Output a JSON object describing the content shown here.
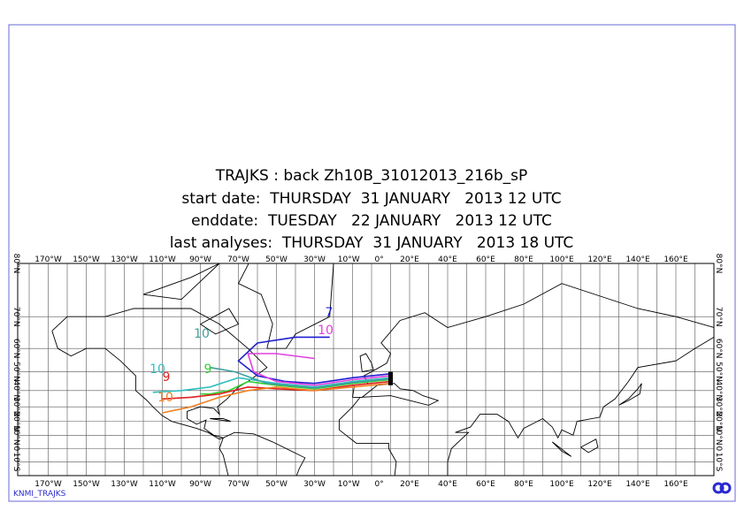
{
  "header": {
    "lines": [
      "TRAJKS : back Zh10B_31012013_216b_sP",
      "start date:  THURSDAY  31 JANUARY   2013 12 UTC",
      "enddate:  TUESDAY   22 JANUARY   2013 12 UTC",
      "last analyses:  THURSDAY  31 JANUARY   2013 18 UTC"
    ]
  },
  "map": {
    "longitude_labels": [
      "170°W",
      "150°W",
      "130°W",
      "110°W",
      "90°W",
      "70°W",
      "50°W",
      "30°W",
      "10°W",
      "0°",
      "20°E",
      "40°E",
      "60°E",
      "80°E",
      "100°E",
      "120°E",
      "140°E",
      "160°E"
    ],
    "latitude_labels": [
      "80°N",
      "70°N",
      "60°N",
      "50°N",
      "40°N",
      "30°N",
      "20°N",
      "10°N",
      "0",
      "10°S"
    ],
    "trajectory_labels": [
      "7",
      "10",
      "10",
      "9",
      "9",
      "10",
      "10"
    ]
  },
  "footer": {
    "text": "KNMI_TRAJKS"
  }
}
